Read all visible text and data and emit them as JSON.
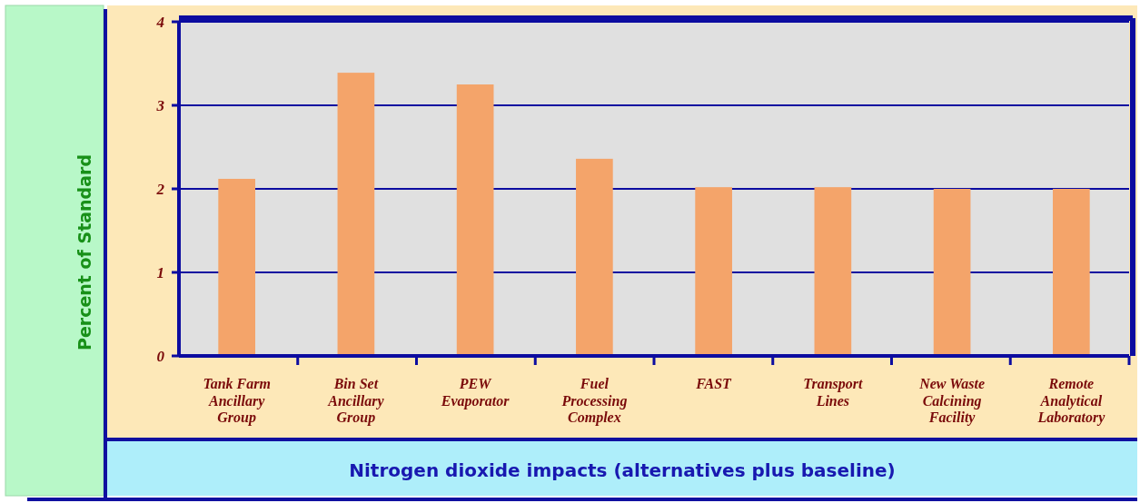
{
  "chart_data": {
    "type": "bar",
    "xlabel": "Nitrogen dioxide impacts (alternatives plus baseline)",
    "ylabel": "Percent of Standard",
    "categories": [
      "Tank Farm Ancillary Group",
      "Bin Set Ancillary Group",
      "PEW Evaporator",
      "Fuel Processing Complex",
      "FAST",
      "Transport Lines",
      "New Waste Calcining Facility",
      "Remote Analytical Laboratory"
    ],
    "values": [
      2.12,
      3.39,
      3.25,
      2.36,
      2.02,
      2.02,
      2.0,
      2.0
    ],
    "color": "#f4a46a",
    "ylim": [
      0,
      4
    ],
    "yticks": [
      0,
      1,
      2,
      3,
      4
    ],
    "grid": "y"
  }
}
